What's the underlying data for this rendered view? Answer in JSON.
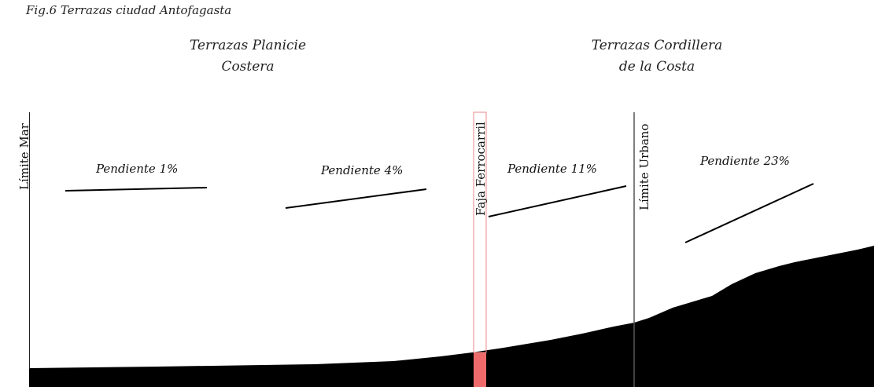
{
  "figure": {
    "caption": "Fig.6 Terrazas ciudad Antofagasta",
    "regions": {
      "left": {
        "line1": "Terrazas Planicie",
        "line2": "Costera"
      },
      "right": {
        "line1": "Terrazas Cordillera",
        "line2": "de la Costa"
      }
    },
    "boundaries": {
      "sea_limit": "Límite Mar",
      "railway_strip": "Faja Ferrocarril",
      "urban_limit": "Límite Urbano"
    },
    "slopes": [
      {
        "label": "Pendiente 1%",
        "percent": 1
      },
      {
        "label": "Pendiente 4%",
        "percent": 4
      },
      {
        "label": "Pendiente 11%",
        "percent": 11
      },
      {
        "label": "Pendiente 23%",
        "percent": 23
      }
    ],
    "colors": {
      "terrain": "#000000",
      "railway_fill": "#ef6a6a",
      "railway_outline": "#e88a8a",
      "boundary_line": "#555555"
    }
  }
}
